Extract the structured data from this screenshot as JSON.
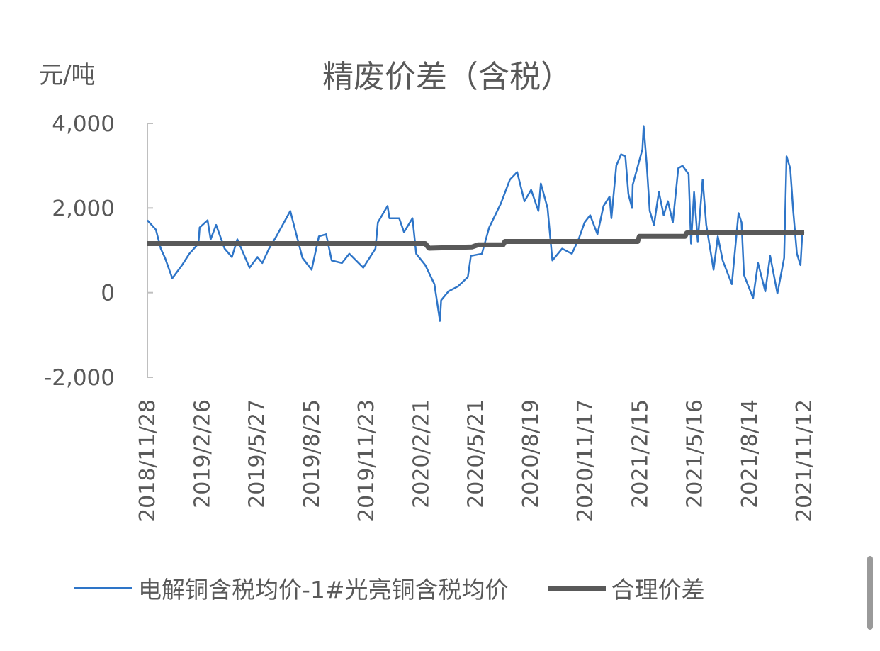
{
  "chart_data": {
    "type": "line",
    "title": "精废价差（含税）",
    "ylabel": "元/吨",
    "xlabel": "",
    "ylim": [
      -2000,
      4000
    ],
    "yticks": [
      "4,000",
      "2,000",
      "0",
      "-2,000"
    ],
    "ytick_values": [
      4000,
      2000,
      0,
      -2000
    ],
    "xlim": [
      "2018-11-28",
      "2021-11-12"
    ],
    "xtick_labels": [
      "2018/11/28",
      "2019/2/26",
      "2019/5/27",
      "2019/8/25",
      "2019/11/23",
      "2020/2/21",
      "2020/5/21",
      "2020/8/19",
      "2020/11/17",
      "2021/2/15",
      "2021/5/16",
      "2021/8/14",
      "2021/11/12"
    ],
    "xtick_dates": [
      "2018-11-28",
      "2019-02-26",
      "2019-05-27",
      "2019-08-25",
      "2019-11-23",
      "2020-02-21",
      "2020-05-21",
      "2020-08-19",
      "2020-11-17",
      "2021-02-15",
      "2021-05-16",
      "2021-08-14",
      "2021-11-12"
    ],
    "grid": false,
    "legend_position": "bottom",
    "series": [
      {
        "name": "电解铜含税均价-1#光亮铜含税均价",
        "color": "#2E75C8",
        "points": [
          [
            "2018-11-28",
            1710
          ],
          [
            "2018-12-12",
            1490
          ],
          [
            "2018-12-20",
            1040
          ],
          [
            "2018-12-27",
            820
          ],
          [
            "2019-01-08",
            340
          ],
          [
            "2019-01-24",
            650
          ],
          [
            "2019-02-05",
            920
          ],
          [
            "2019-02-20",
            1160
          ],
          [
            "2019-02-22",
            1540
          ],
          [
            "2019-03-07",
            1710
          ],
          [
            "2019-03-12",
            1260
          ],
          [
            "2019-03-21",
            1600
          ],
          [
            "2019-04-04",
            1040
          ],
          [
            "2019-04-16",
            840
          ],
          [
            "2019-04-25",
            1260
          ],
          [
            "2019-05-15",
            590
          ],
          [
            "2019-05-28",
            840
          ],
          [
            "2019-06-05",
            700
          ],
          [
            "2019-06-16",
            1040
          ],
          [
            "2019-06-28",
            1330
          ],
          [
            "2019-07-21",
            1930
          ],
          [
            "2019-08-02",
            1260
          ],
          [
            "2019-08-10",
            820
          ],
          [
            "2019-08-25",
            540
          ],
          [
            "2019-09-06",
            1330
          ],
          [
            "2019-09-18",
            1380
          ],
          [
            "2019-09-27",
            760
          ],
          [
            "2019-10-14",
            700
          ],
          [
            "2019-10-26",
            920
          ],
          [
            "2019-11-18",
            590
          ],
          [
            "2019-12-08",
            1040
          ],
          [
            "2019-12-12",
            1660
          ],
          [
            "2019-12-28",
            2050
          ],
          [
            "2019-12-31",
            1760
          ],
          [
            "2020-01-16",
            1760
          ],
          [
            "2020-01-24",
            1430
          ],
          [
            "2020-02-07",
            1760
          ],
          [
            "2020-02-13",
            920
          ],
          [
            "2020-02-28",
            650
          ],
          [
            "2020-03-14",
            200
          ],
          [
            "2020-03-23",
            -670
          ],
          [
            "2020-03-25",
            -180
          ],
          [
            "2020-04-06",
            30
          ],
          [
            "2020-04-22",
            150
          ],
          [
            "2020-05-08",
            370
          ],
          [
            "2020-05-13",
            870
          ],
          [
            "2020-05-31",
            920
          ],
          [
            "2020-06-12",
            1540
          ],
          [
            "2020-07-01",
            2100
          ],
          [
            "2020-07-16",
            2670
          ],
          [
            "2020-07-28",
            2850
          ],
          [
            "2020-08-09",
            2160
          ],
          [
            "2020-08-20",
            2430
          ],
          [
            "2020-09-01",
            1930
          ],
          [
            "2020-09-05",
            2580
          ],
          [
            "2020-09-16",
            2000
          ],
          [
            "2020-09-24",
            760
          ],
          [
            "2020-10-10",
            1040
          ],
          [
            "2020-10-26",
            920
          ],
          [
            "2020-11-06",
            1260
          ],
          [
            "2020-11-16",
            1660
          ],
          [
            "2020-11-25",
            1830
          ],
          [
            "2020-12-07",
            1380
          ],
          [
            "2020-12-17",
            2050
          ],
          [
            "2020-12-27",
            2270
          ],
          [
            "2020-12-30",
            1760
          ],
          [
            "2021-01-07",
            3000
          ],
          [
            "2021-01-15",
            3270
          ],
          [
            "2021-01-22",
            3220
          ],
          [
            "2021-01-27",
            2330
          ],
          [
            "2021-02-02",
            2000
          ],
          [
            "2021-02-03",
            2550
          ],
          [
            "2021-02-19",
            3390
          ],
          [
            "2021-02-21",
            3940
          ],
          [
            "2021-02-26",
            3050
          ],
          [
            "2021-03-03",
            1930
          ],
          [
            "2021-03-10",
            1600
          ],
          [
            "2021-03-18",
            2380
          ],
          [
            "2021-03-26",
            1830
          ],
          [
            "2021-04-02",
            2160
          ],
          [
            "2021-04-10",
            1660
          ],
          [
            "2021-04-19",
            2940
          ],
          [
            "2021-04-26",
            3000
          ],
          [
            "2021-05-06",
            2800
          ],
          [
            "2021-05-10",
            1160
          ],
          [
            "2021-05-15",
            2380
          ],
          [
            "2021-05-21",
            1210
          ],
          [
            "2021-05-29",
            2670
          ],
          [
            "2021-06-04",
            1600
          ],
          [
            "2021-06-16",
            540
          ],
          [
            "2021-06-23",
            1330
          ],
          [
            "2021-07-01",
            760
          ],
          [
            "2021-07-16",
            200
          ],
          [
            "2021-07-27",
            1880
          ],
          [
            "2021-08-01",
            1660
          ],
          [
            "2021-08-05",
            420
          ],
          [
            "2021-08-20",
            -130
          ],
          [
            "2021-08-28",
            700
          ],
          [
            "2021-09-09",
            30
          ],
          [
            "2021-09-17",
            870
          ],
          [
            "2021-09-29",
            -20
          ],
          [
            "2021-10-10",
            820
          ],
          [
            "2021-10-14",
            3220
          ],
          [
            "2021-10-20",
            2940
          ],
          [
            "2021-10-25",
            1930
          ],
          [
            "2021-10-31",
            920
          ],
          [
            "2021-11-06",
            650
          ],
          [
            "2021-11-09",
            1430
          ],
          [
            "2021-11-12",
            1400
          ]
        ]
      },
      {
        "name": "合理价差",
        "color": "#595959",
        "points": [
          [
            "2018-11-28",
            1160
          ],
          [
            "2020-02-28",
            1160
          ],
          [
            "2020-03-05",
            1050
          ],
          [
            "2020-05-15",
            1080
          ],
          [
            "2020-05-25",
            1130
          ],
          [
            "2020-07-05",
            1130
          ],
          [
            "2020-07-08",
            1210
          ],
          [
            "2021-02-11",
            1210
          ],
          [
            "2021-02-14",
            1330
          ],
          [
            "2021-04-30",
            1330
          ],
          [
            "2021-05-03",
            1410
          ],
          [
            "2021-11-12",
            1410
          ]
        ]
      }
    ]
  }
}
